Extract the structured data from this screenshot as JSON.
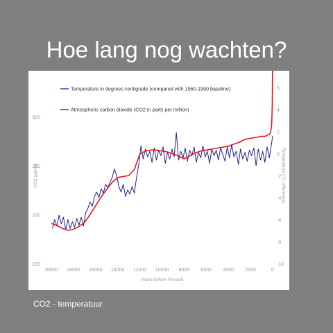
{
  "slide": {
    "title": "Hoe lang nog wachten?",
    "caption": "CO2 - temperatuur"
  },
  "colors": {
    "background": "#7f7f7f",
    "temperature": "#1f1f8f",
    "co2": "#e8141b",
    "axis_text": "#9a9a9a"
  },
  "chart_data": {
    "type": "line",
    "xlabel": "Years Before Present",
    "ylabel_left": "CO2 (ppmv)",
    "ylabel_right": "Temperature (°C difference)",
    "x_direction": "reversed",
    "xlim": [
      20000,
      0
    ],
    "xticks": [
      20000,
      18000,
      16000,
      14000,
      12000,
      10000,
      8000,
      6000,
      4000,
      2000,
      0
    ],
    "ylim_left": [
      150,
      330
    ],
    "yticks_left": [
      150,
      200,
      250,
      300
    ],
    "ylim_right": [
      -10,
      6
    ],
    "yticks_right": [
      6,
      4,
      2,
      0,
      -2,
      -4,
      -6,
      -8,
      -10
    ],
    "grid": false,
    "legend_position": "top-left",
    "series": [
      {
        "name": "Temperature in degrees centigrade (compared with 1960-1990 baseline)",
        "axis": "right",
        "color": "#1f1f8f",
        "x": [
          19900,
          19700,
          19500,
          19300,
          19100,
          18900,
          18700,
          18500,
          18300,
          18100,
          17900,
          17700,
          17500,
          17300,
          17100,
          16900,
          16700,
          16500,
          16300,
          16100,
          15900,
          15700,
          15500,
          15300,
          15100,
          14900,
          14700,
          14500,
          14300,
          14100,
          13900,
          13700,
          13500,
          13300,
          13100,
          12900,
          12700,
          12500,
          12300,
          12100,
          11900,
          11700,
          11500,
          11300,
          11100,
          10900,
          10700,
          10500,
          10300,
          10100,
          9900,
          9700,
          9500,
          9300,
          9100,
          8900,
          8700,
          8500,
          8300,
          8100,
          7900,
          7700,
          7500,
          7300,
          7100,
          6900,
          6700,
          6500,
          6300,
          6100,
          5900,
          5700,
          5500,
          5300,
          5100,
          4900,
          4700,
          4500,
          4300,
          4100,
          3900,
          3700,
          3500,
          3300,
          3100,
          2900,
          2700,
          2500,
          2300,
          2100,
          1900,
          1700,
          1500,
          1300,
          1100,
          900,
          700,
          500,
          300,
          100,
          0
        ],
        "y": [
          -6.8,
          -6.0,
          -6.6,
          -5.6,
          -6.4,
          -5.8,
          -6.9,
          -6.0,
          -6.8,
          -6.2,
          -6.7,
          -5.9,
          -6.5,
          -5.8,
          -6.6,
          -5.4,
          -5.0,
          -4.4,
          -4.8,
          -3.9,
          -3.5,
          -4.0,
          -3.2,
          -3.6,
          -2.8,
          -3.1,
          -2.6,
          -2.2,
          -1.4,
          -2.0,
          -3.0,
          -3.5,
          -2.8,
          -3.9,
          -3.3,
          -3.7,
          -3.0,
          -3.6,
          -2.2,
          -1.0,
          0.7,
          -0.5,
          0.4,
          -0.3,
          0.2,
          -0.8,
          0.5,
          -0.6,
          0.3,
          -0.2,
          0.6,
          -0.9,
          0.1,
          -0.5,
          0.4,
          -0.3,
          1.9,
          -0.6,
          0.2,
          -0.4,
          0.5,
          -0.7,
          0.3,
          -0.2,
          0.6,
          -0.8,
          0.1,
          -0.4,
          0.7,
          -0.3,
          0.2,
          -0.9,
          0.4,
          -0.2,
          0.3,
          -0.6,
          0.5,
          -0.1,
          -0.7,
          0.6,
          -0.4,
          0.8,
          -0.3,
          0.2,
          -1.0,
          0.4,
          -0.5,
          0.1,
          -0.7,
          0.3,
          -0.2,
          0.5,
          -1.1,
          0.4,
          -0.6,
          0.2,
          -0.8,
          0.6,
          -0.4,
          0.9,
          1.6
        ]
      },
      {
        "name": "Atmospheric carbon dioxide (CO2 in parts per million)",
        "axis": "left",
        "color": "#e8141b",
        "x": [
          20000,
          19500,
          19000,
          18500,
          18000,
          17500,
          17000,
          16500,
          16000,
          15500,
          15000,
          14500,
          14000,
          13500,
          13000,
          12500,
          12000,
          11500,
          11000,
          10500,
          10000,
          9500,
          9000,
          8500,
          8000,
          7500,
          7000,
          6500,
          6000,
          5500,
          5000,
          4500,
          4000,
          3500,
          3000,
          2500,
          2000,
          1500,
          1000,
          700,
          500,
          300,
          200,
          100,
          60,
          30,
          10,
          0
        ],
        "y": [
          191,
          189,
          186,
          184,
          185,
          188,
          192,
          200,
          209,
          218,
          226,
          233,
          238,
          239,
          240,
          246,
          262,
          265,
          266,
          266,
          265,
          264,
          262,
          260,
          257,
          260,
          263,
          265,
          266,
          267,
          268,
          269,
          270,
          272,
          274,
          277,
          278,
          279,
          280,
          280,
          281,
          282,
          284,
          290,
          300,
          315,
          345,
          380
        ]
      }
    ]
  }
}
